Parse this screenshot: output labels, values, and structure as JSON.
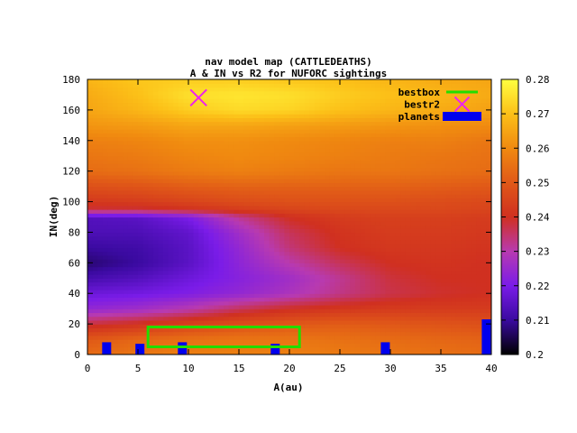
{
  "chart_data": {
    "type": "heatmap",
    "title": "nav model map (CATTLEDEATHS)",
    "subtitle": "A & IN vs R2 for NUFORC sightings",
    "xlabel": "A(au)",
    "ylabel": "IN(deg)",
    "xlim": [
      0,
      40
    ],
    "ylim": [
      0,
      180
    ],
    "x_ticks": [
      "0",
      "5",
      "10",
      "15",
      "20",
      "25",
      "30",
      "35",
      "40"
    ],
    "y_ticks": [
      "0",
      "20",
      "40",
      "60",
      "80",
      "100",
      "120",
      "140",
      "160",
      "180"
    ],
    "colorbar": {
      "range": [
        0.2,
        0.28
      ],
      "ticks": [
        "0.2",
        "0.21",
        "0.22",
        "0.23",
        "0.24",
        "0.25",
        "0.26",
        "0.27",
        "0.28"
      ],
      "colors": [
        "#000000",
        "#3a0aa0",
        "#7a1ce8",
        "#b83ab0",
        "#d03020",
        "#e05818",
        "#f08a10",
        "#fcc018",
        "#ffff40"
      ]
    },
    "legend": {
      "position": "top-right",
      "entries": [
        {
          "label": "bestbox",
          "color": "#22dd00",
          "style": "line"
        },
        {
          "label": "bestr2",
          "color": "#ee22ee",
          "style": "cross"
        },
        {
          "label": "planets",
          "color": "#0000ee",
          "style": "box"
        }
      ]
    },
    "bestbox": {
      "x": [
        6,
        21
      ],
      "y": [
        5,
        18
      ]
    },
    "bestr2": {
      "x": 11,
      "y": 168
    },
    "planets": [
      {
        "x": 1.9,
        "y": 8
      },
      {
        "x": 5.2,
        "y": 7
      },
      {
        "x": 9.4,
        "y": 8
      },
      {
        "x": 18.6,
        "y": 7
      },
      {
        "x": 29.5,
        "y": 8
      },
      {
        "x": 39.5,
        "y": 23
      }
    ],
    "field_rows": [
      {
        "y": 180,
        "values": [
          0.268,
          0.271,
          0.272,
          0.272,
          0.271,
          0.27,
          0.268,
          0.266,
          0.265
        ]
      },
      {
        "y": 170,
        "values": [
          0.266,
          0.27,
          0.275,
          0.276,
          0.275,
          0.272,
          0.27,
          0.268,
          0.266
        ]
      },
      {
        "y": 160,
        "values": [
          0.265,
          0.268,
          0.272,
          0.274,
          0.273,
          0.27,
          0.268,
          0.266,
          0.264
        ]
      },
      {
        "y": 150,
        "values": [
          0.262,
          0.263,
          0.265,
          0.265,
          0.264,
          0.263,
          0.262,
          0.261,
          0.26
        ]
      },
      {
        "y": 140,
        "values": [
          0.258,
          0.259,
          0.261,
          0.261,
          0.26,
          0.259,
          0.258,
          0.258,
          0.256
        ]
      },
      {
        "y": 130,
        "values": [
          0.256,
          0.257,
          0.259,
          0.26,
          0.259,
          0.258,
          0.257,
          0.256,
          0.255
        ]
      },
      {
        "y": 120,
        "values": [
          0.254,
          0.255,
          0.257,
          0.258,
          0.257,
          0.256,
          0.256,
          0.255,
          0.254
        ]
      },
      {
        "y": 110,
        "values": [
          0.248,
          0.249,
          0.251,
          0.252,
          0.252,
          0.252,
          0.252,
          0.251,
          0.25
        ]
      },
      {
        "y": 100,
        "values": [
          0.242,
          0.243,
          0.245,
          0.247,
          0.248,
          0.248,
          0.248,
          0.247,
          0.246
        ]
      },
      {
        "y": 95,
        "values": [
          0.238,
          0.238,
          0.24,
          0.243,
          0.245,
          0.246,
          0.246,
          0.246,
          0.245
        ]
      },
      {
        "y": 90,
        "values": [
          0.214,
          0.215,
          0.22,
          0.232,
          0.24,
          0.243,
          0.244,
          0.244,
          0.243
        ]
      },
      {
        "y": 80,
        "values": [
          0.213,
          0.213,
          0.216,
          0.226,
          0.236,
          0.241,
          0.243,
          0.243,
          0.242
        ]
      },
      {
        "y": 70,
        "values": [
          0.21,
          0.211,
          0.215,
          0.224,
          0.234,
          0.24,
          0.242,
          0.242,
          0.241
        ]
      },
      {
        "y": 60,
        "values": [
          0.207,
          0.21,
          0.215,
          0.223,
          0.23,
          0.236,
          0.24,
          0.241,
          0.24
        ]
      },
      {
        "y": 50,
        "values": [
          0.212,
          0.214,
          0.218,
          0.222,
          0.226,
          0.232,
          0.238,
          0.24,
          0.24
        ]
      },
      {
        "y": 40,
        "values": [
          0.218,
          0.219,
          0.221,
          0.224,
          0.228,
          0.233,
          0.237,
          0.239,
          0.24
        ]
      },
      {
        "y": 30,
        "values": [
          0.224,
          0.226,
          0.23,
          0.236,
          0.24,
          0.242,
          0.243,
          0.243,
          0.243
        ]
      },
      {
        "y": 20,
        "values": [
          0.238,
          0.241,
          0.245,
          0.248,
          0.25,
          0.251,
          0.25,
          0.249,
          0.248
        ]
      },
      {
        "y": 10,
        "values": [
          0.25,
          0.253,
          0.255,
          0.256,
          0.256,
          0.255,
          0.254,
          0.253,
          0.252
        ]
      },
      {
        "y": 0,
        "values": [
          0.254,
          0.256,
          0.258,
          0.258,
          0.258,
          0.257,
          0.256,
          0.255,
          0.254
        ]
      }
    ],
    "field_x": [
      0,
      5,
      10,
      15,
      20,
      25,
      30,
      35,
      40
    ],
    "grid": false
  }
}
